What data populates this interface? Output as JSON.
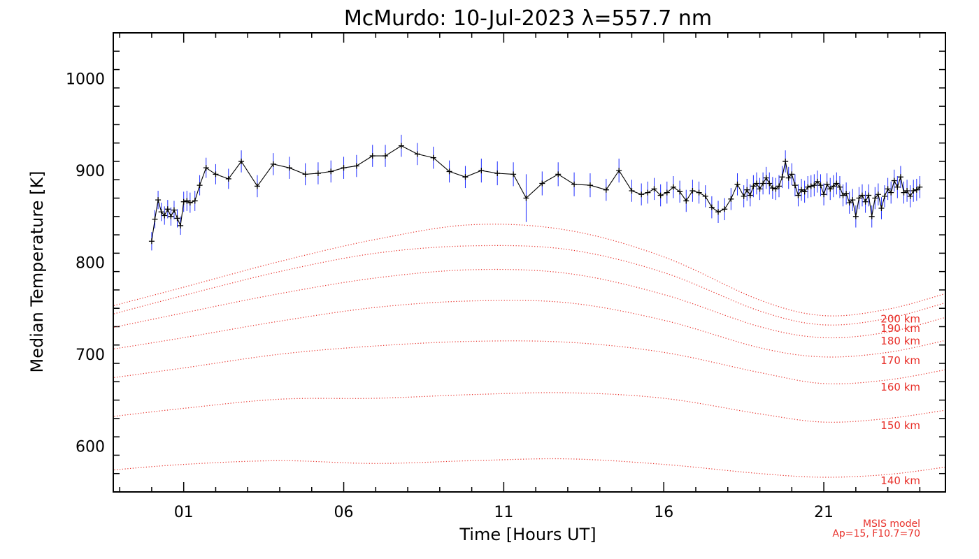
{
  "chart_data": {
    "type": "line",
    "title": "McMurdo: 10-Jul-2023 λ=557.7 nm",
    "xlabel": "Time [Hours UT]",
    "ylabel": "Median Temperature [K]",
    "xlim": [
      -1.2,
      24.8
    ],
    "ylim": [
      550,
      1050
    ],
    "xticks": [
      {
        "value": 1,
        "label": "01"
      },
      {
        "value": 6,
        "label": "06"
      },
      {
        "value": 11,
        "label": "11"
      },
      {
        "value": 16,
        "label": "16"
      },
      {
        "value": 21,
        "label": "21"
      }
    ],
    "yticks": [
      600,
      700,
      800,
      900,
      1000
    ],
    "grid": false,
    "colors": {
      "measured": "#000000",
      "error_bars": "#1e2cff",
      "model": "#e8302a"
    },
    "series": [
      {
        "style": "measured line with '+' markers and blue error bars",
        "x": [
          0.0,
          0.1,
          0.2,
          0.3,
          0.4,
          0.5,
          0.6,
          0.7,
          0.8,
          0.9,
          1.0,
          1.1,
          1.2,
          1.35,
          1.5,
          1.7,
          2.0,
          2.4,
          2.8,
          3.3,
          3.8,
          4.3,
          4.8,
          5.2,
          5.6,
          6.0,
          6.4,
          6.9,
          7.3,
          7.8,
          8.3,
          8.8,
          9.3,
          9.8,
          10.3,
          10.8,
          11.3,
          11.7,
          12.2,
          12.7,
          13.2,
          13.7,
          14.2,
          14.6,
          15.0,
          15.3,
          15.5,
          15.7,
          15.9,
          16.1,
          16.3,
          16.5,
          16.7,
          16.9,
          17.1,
          17.3,
          17.5,
          17.7,
          17.9,
          18.1,
          18.3,
          18.5,
          18.6,
          18.7,
          18.8,
          18.9,
          19.0,
          19.1,
          19.2,
          19.3,
          19.4,
          19.5,
          19.6,
          19.7,
          19.8,
          19.9,
          20.0,
          20.1,
          20.2,
          20.3,
          20.4,
          20.5,
          20.6,
          20.7,
          20.8,
          20.9,
          21.0,
          21.1,
          21.2,
          21.3,
          21.4,
          21.5,
          21.6,
          21.7,
          21.8,
          21.9,
          22.0,
          22.1,
          22.2,
          22.3,
          22.4,
          22.5,
          22.6,
          22.7,
          22.8,
          22.9,
          23.0,
          23.1,
          23.2,
          23.3,
          23.4,
          23.5,
          23.6,
          23.7,
          23.8,
          23.9,
          24.0
        ],
        "y": [
          823,
          847,
          868,
          855,
          851,
          858,
          850,
          857,
          848,
          840,
          866,
          867,
          865,
          867,
          884,
          903,
          896,
          891,
          910,
          883,
          907,
          903,
          896,
          897,
          899,
          903,
          905,
          916,
          916,
          927,
          918,
          914,
          899,
          893,
          900,
          897,
          896,
          870,
          886,
          896,
          885,
          884,
          879,
          900,
          878,
          874,
          876,
          880,
          873,
          876,
          882,
          877,
          867,
          878,
          876,
          872,
          860,
          855,
          858,
          869,
          885,
          872,
          879,
          873,
          883,
          886,
          880,
          886,
          892,
          886,
          881,
          880,
          883,
          893,
          910,
          892,
          896,
          884,
          873,
          879,
          877,
          882,
          883,
          884,
          888,
          884,
          874,
          885,
          880,
          883,
          886,
          882,
          873,
          875,
          865,
          868,
          850,
          870,
          873,
          866,
          873,
          850,
          870,
          874,
          859,
          872,
          880,
          876,
          889,
          882,
          893,
          876,
          878,
          872,
          878,
          879,
          882
        ],
        "error": [
          10,
          10,
          10,
          10,
          10,
          10,
          10,
          10,
          10,
          10,
          11,
          11,
          11,
          11,
          11,
          11,
          11,
          11,
          12,
          12,
          12,
          12,
          12,
          12,
          12,
          12,
          12,
          12,
          12,
          12,
          12,
          12,
          12,
          12,
          13,
          13,
          13,
          26,
          13,
          13,
          13,
          13,
          12,
          13,
          12,
          12,
          12,
          12,
          12,
          12,
          12,
          12,
          12,
          12,
          12,
          12,
          12,
          12,
          12,
          12,
          12,
          12,
          12,
          12,
          12,
          12,
          12,
          12,
          12,
          12,
          12,
          12,
          12,
          12,
          12,
          12,
          12,
          12,
          12,
          12,
          12,
          12,
          12,
          12,
          12,
          12,
          12,
          12,
          12,
          12,
          12,
          12,
          12,
          12,
          12,
          12,
          12,
          12,
          12,
          12,
          12,
          12,
          12,
          12,
          12,
          12,
          12,
          12,
          12,
          12,
          12,
          12,
          12,
          12,
          12,
          12,
          12
        ]
      },
      {
        "name": "200 km",
        "style": "MSIS model, dotted",
        "x": [
          -1.5,
          1.0,
          4.0,
          7.0,
          10.0,
          13.0,
          16.0,
          19.0,
          21.0,
          23.0,
          24.8
        ],
        "y": [
          750,
          773,
          801,
          825,
          841,
          835,
          806,
          759,
          742,
          749,
          766
        ]
      },
      {
        "name": "190 km",
        "style": "MSIS model, dotted",
        "x": [
          -1.5,
          1.0,
          4.0,
          7.0,
          10.0,
          13.0,
          16.0,
          19.0,
          21.0,
          23.0,
          24.8
        ],
        "y": [
          741,
          764,
          790,
          810,
          818,
          814,
          789,
          747,
          732,
          739,
          756
        ]
      },
      {
        "name": "180 km",
        "style": "MSIS model, dotted",
        "x": [
          -1.5,
          1.0,
          4.0,
          7.0,
          10.0,
          13.0,
          16.0,
          19.0,
          21.0,
          23.0,
          24.8
        ],
        "y": [
          727,
          745,
          766,
          783,
          792,
          788,
          765,
          730,
          718,
          724,
          740
        ]
      },
      {
        "name": "170 km",
        "style": "MSIS model, dotted",
        "x": [
          -1.5,
          1.0,
          4.0,
          7.0,
          10.0,
          13.0,
          16.0,
          19.0,
          21.0,
          23.0,
          24.8
        ],
        "y": [
          704,
          718,
          736,
          751,
          758,
          756,
          737,
          707,
          697,
          702,
          715
        ]
      },
      {
        "name": "160 km",
        "style": "MSIS model, dotted",
        "x": [
          -1.5,
          1.0,
          4.0,
          7.0,
          10.0,
          13.0,
          16.0,
          19.0,
          21.0,
          23.0,
          24.8
        ],
        "y": [
          673,
          685,
          700,
          709,
          714,
          713,
          702,
          680,
          668,
          672,
          683
        ]
      },
      {
        "name": "150 km",
        "style": "MSIS model, dotted",
        "x": [
          -1.5,
          1.0,
          4.0,
          7.0,
          10.0,
          13.0,
          16.0,
          19.0,
          21.0,
          23.0,
          24.8
        ],
        "y": [
          631,
          641,
          651,
          652,
          656,
          658,
          652,
          635,
          626,
          630,
          639
        ]
      },
      {
        "name": "140 km",
        "style": "MSIS model, dotted",
        "x": [
          -1.5,
          1.0,
          4.0,
          7.0,
          10.0,
          13.0,
          16.0,
          19.0,
          21.0,
          23.0,
          24.8
        ],
        "y": [
          573,
          580,
          584,
          581,
          584,
          586,
          580,
          570,
          566,
          569,
          577
        ]
      }
    ],
    "annotations": [
      "MSIS model",
      "Ap=15, F10.7=70"
    ]
  }
}
